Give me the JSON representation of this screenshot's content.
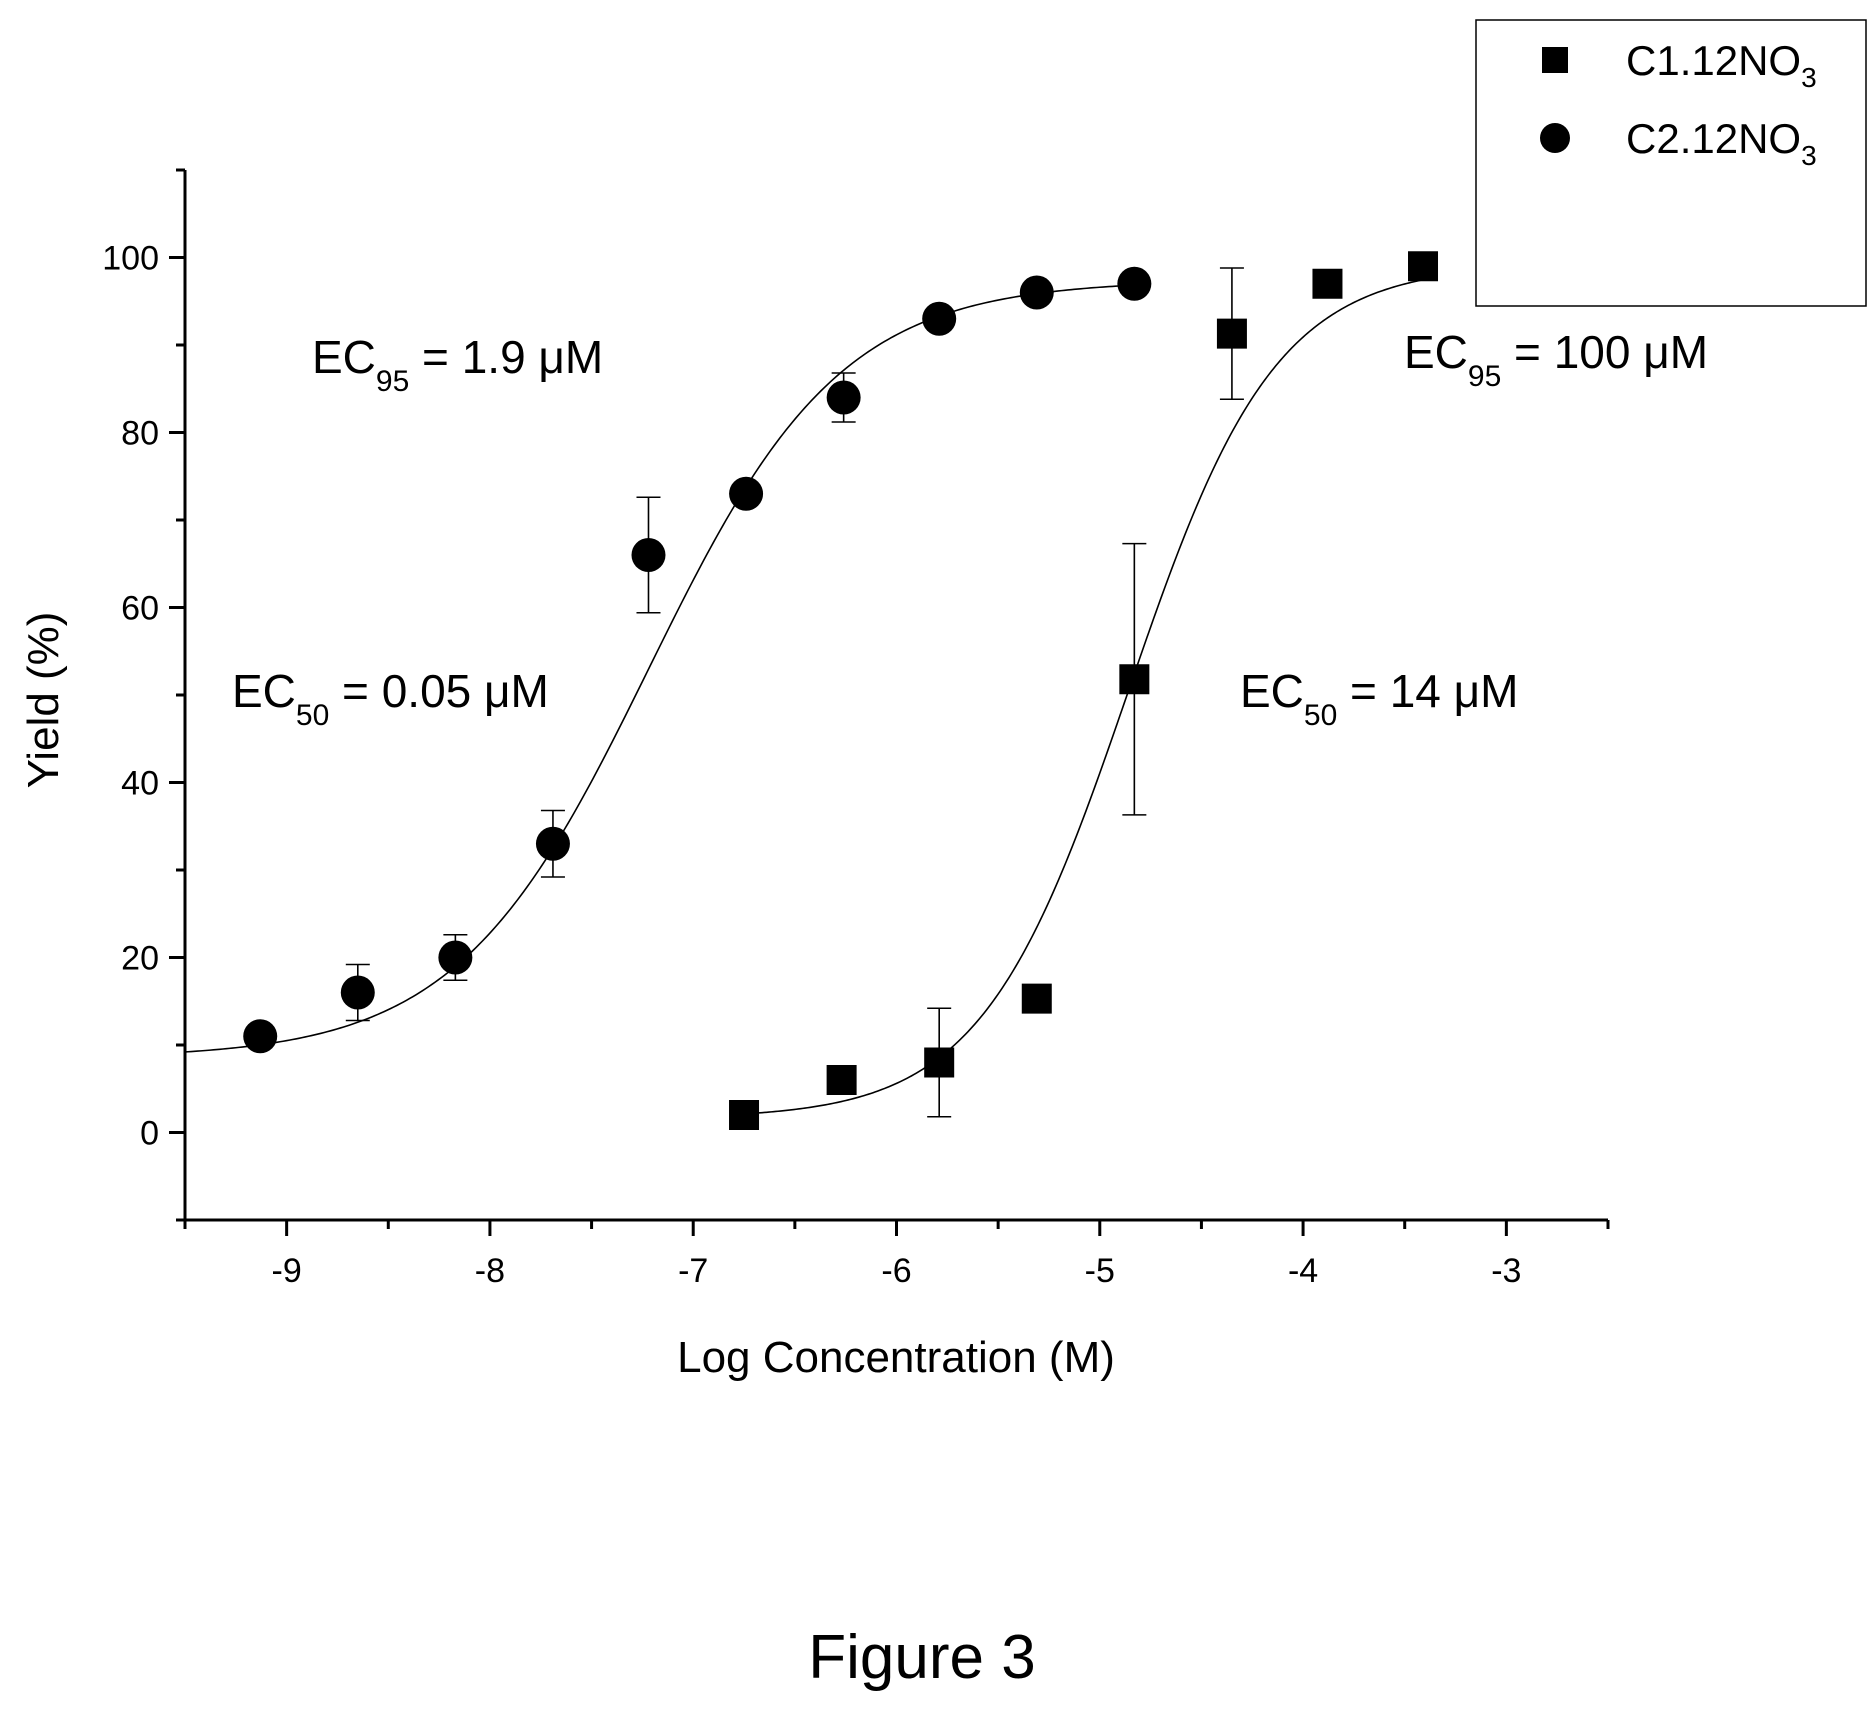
{
  "figure_caption": "Figure 3",
  "chart_data": {
    "type": "scatter",
    "title": "",
    "xlabel": "Log Concentration (M)",
    "ylabel": "Yield (%)",
    "xlim": [
      -9.5,
      -2.5
    ],
    "ylim": [
      -10,
      110
    ],
    "x_ticks": [
      -9,
      -8,
      -7,
      -6,
      -5,
      -4,
      -3
    ],
    "y_ticks": [
      0,
      20,
      40,
      60,
      80,
      100
    ],
    "grid": false,
    "legend_position": "top-right",
    "series": [
      {
        "name": "C1.12NO",
        "name_subscript": "3",
        "marker": "square",
        "color": "#000000",
        "x": [
          -6.75,
          -6.27,
          -5.79,
          -5.31,
          -4.83,
          -4.35,
          -3.88,
          -3.41
        ],
        "y": [
          2,
          6,
          8,
          15.3,
          51.8,
          91.3,
          97,
          99
        ],
        "error": [
          0,
          0,
          6.2,
          1.0,
          15.5,
          7.5,
          0,
          0
        ],
        "fit": {
          "model": "logistic",
          "bottom": 1.6,
          "top": 99.2,
          "log_ec50": -4.86,
          "hill": 1.2
        }
      },
      {
        "name": "C2.12NO",
        "name_subscript": "3",
        "marker": "circle",
        "color": "#000000",
        "x": [
          -9.13,
          -8.65,
          -8.17,
          -7.69,
          -7.22,
          -6.74,
          -6.26,
          -5.79,
          -5.31,
          -4.83
        ],
        "y": [
          11,
          16,
          20,
          33,
          66,
          73,
          84,
          93,
          96,
          97
        ],
        "error": [
          0,
          3.2,
          2.6,
          3.8,
          6.6,
          0,
          2.8,
          0,
          0,
          0
        ],
        "fit": {
          "model": "logistic",
          "bottom": 8.5,
          "top": 97.4,
          "log_ec50": -7.22,
          "hill": 0.92
        }
      }
    ],
    "annotations": [
      {
        "base": "EC",
        "sub": "95",
        "rest": " = 1.9 μM"
      },
      {
        "base": "EC",
        "sub": "50",
        "rest": " = 0.05 μM"
      },
      {
        "base": "EC",
        "sub": "95",
        "rest": " = 100 μM"
      },
      {
        "base": "EC",
        "sub": "50",
        "rest": " = 14 μM"
      }
    ]
  }
}
